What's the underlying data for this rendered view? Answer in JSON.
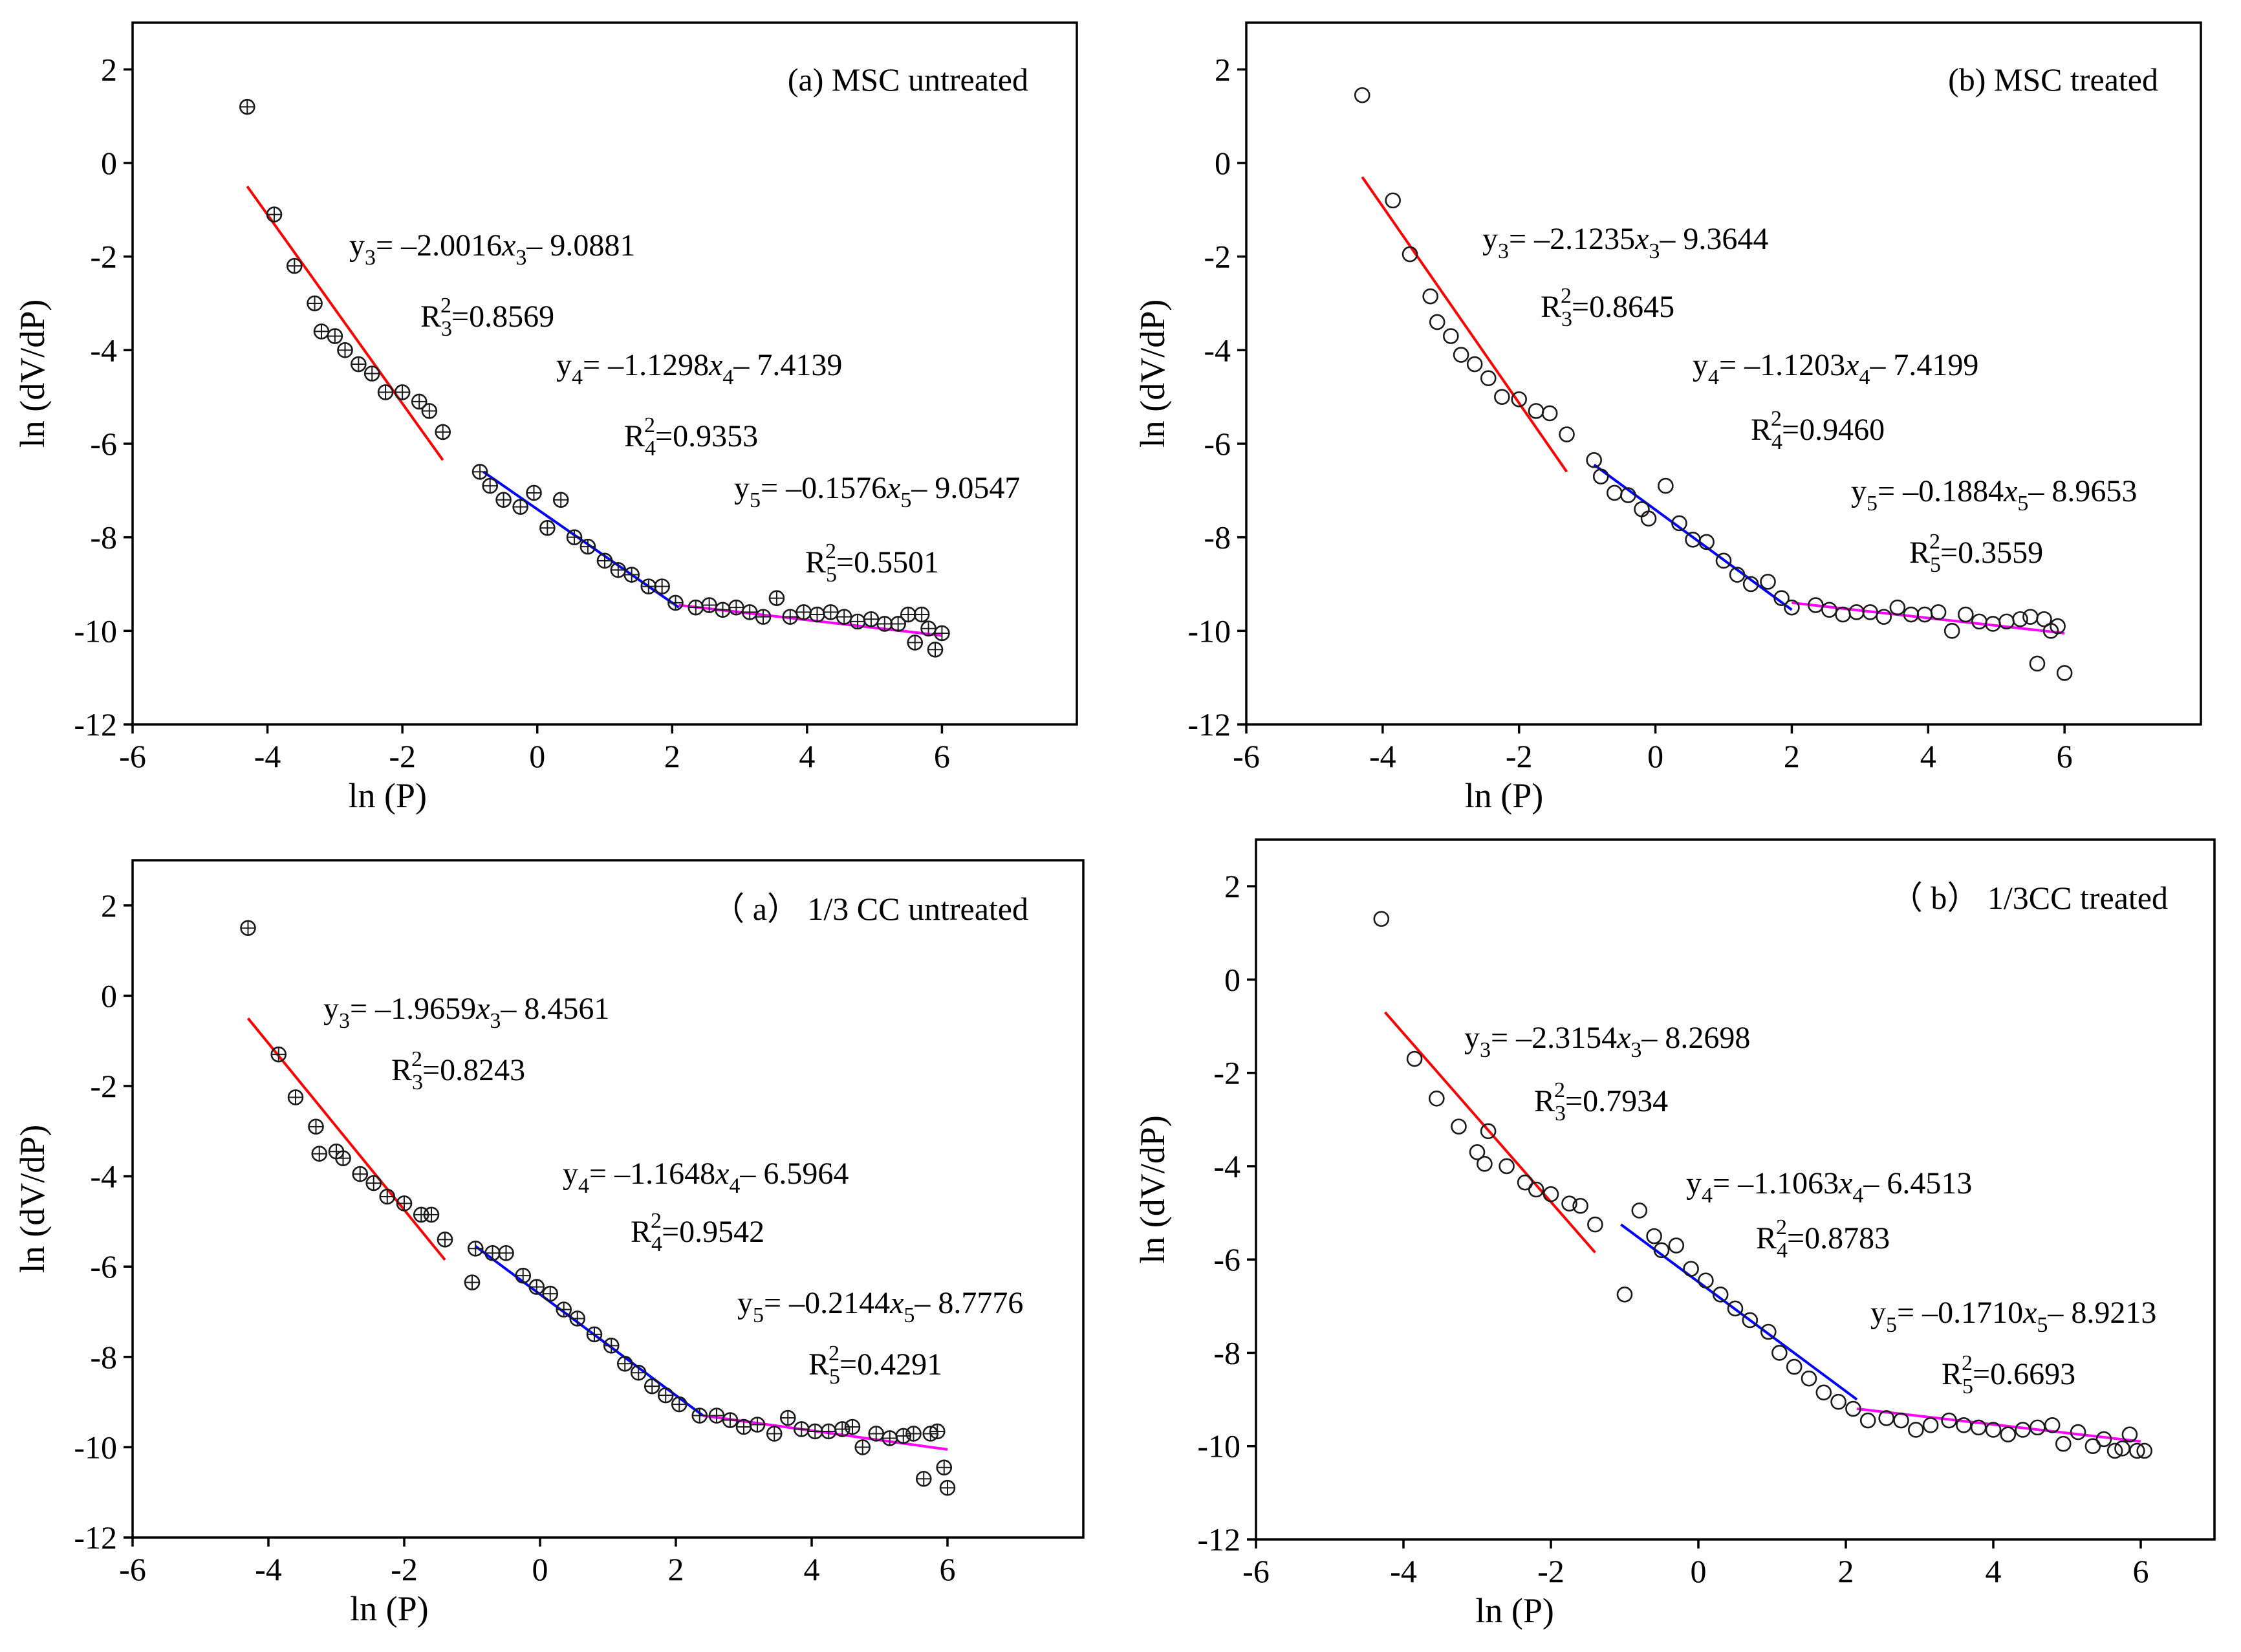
{
  "chart_data": [
    {
      "type": "scatter",
      "title": "(a) MSC untreated",
      "xlabel": "ln (P)",
      "ylabel": "ln (dV/dP)",
      "xlim": [
        -6,
        8
      ],
      "ylim": [
        -12,
        3
      ],
      "xticks": [
        "-6",
        "-4",
        "-2",
        "0",
        "2",
        "4",
        "6"
      ],
      "yticks": [
        "2",
        "0",
        "-2",
        "-4",
        "-6",
        "-8",
        "-10",
        "-12"
      ],
      "marker": "crossed-circle",
      "points": {
        "x": [
          -4.3,
          -3.9,
          -3.6,
          -3.3,
          -3.2,
          -3.0,
          -2.85,
          -2.65,
          -2.45,
          -2.25,
          -2.0,
          -1.75,
          -1.6,
          -1.4,
          -0.85,
          -0.7,
          -0.5,
          -0.25,
          -0.05,
          0.15,
          0.35,
          0.55,
          0.75,
          1.0,
          1.2,
          1.4,
          1.65,
          1.85,
          2.05,
          2.35,
          2.55,
          2.75,
          2.95,
          3.15,
          3.35,
          3.55,
          3.75,
          3.95,
          4.15,
          4.35,
          4.55,
          4.75,
          4.95,
          5.15,
          5.35,
          5.5,
          5.6,
          5.7,
          5.8,
          5.9,
          6.0
        ],
        "y": [
          1.2,
          -1.1,
          -2.2,
          -3.0,
          -3.6,
          -3.7,
          -4.0,
          -4.3,
          -4.5,
          -4.9,
          -4.9,
          -5.1,
          -5.3,
          -5.75,
          -6.6,
          -6.9,
          -7.2,
          -7.35,
          -7.05,
          -7.8,
          -7.2,
          -8.0,
          -8.2,
          -8.5,
          -8.7,
          -8.8,
          -9.05,
          -9.05,
          -9.4,
          -9.5,
          -9.45,
          -9.55,
          -9.5,
          -9.6,
          -9.7,
          -9.3,
          -9.7,
          -9.6,
          -9.65,
          -9.6,
          -9.7,
          -9.8,
          -9.75,
          -9.85,
          -9.85,
          -9.65,
          -10.25,
          -9.65,
          -9.95,
          -10.4,
          -10.05
        ]
      },
      "fits": [
        {
          "name": "y3",
          "color": "#ff0000",
          "x_range": [
            -4.3,
            -1.4
          ],
          "y_range": [
            -0.5,
            -6.35
          ]
        },
        {
          "name": "y4",
          "color": "#0000ff",
          "x_range": [
            -0.8,
            2.1
          ],
          "y_range": [
            -6.6,
            -9.5
          ]
        },
        {
          "name": "y5",
          "color": "#ff00ff",
          "x_range": [
            2.1,
            6.0
          ],
          "y_range": [
            -9.45,
            -10.1
          ]
        }
      ],
      "annotations": {
        "eq3_a": "y",
        "eq3_sub": "3",
        "eq3_b": "= –2.0016",
        "eq3_x": "x",
        "eq3_xsub": "3",
        "eq3_c": "– 9.0881",
        "r3_a": "R",
        "r3_sub": "3",
        "r3_sup": "2",
        "r3_b": "=0.8569",
        "eq4_a": "y",
        "eq4_sub": "4",
        "eq4_b": "= –1.1298",
        "eq4_x": "x",
        "eq4_xsub": "4",
        "eq4_c": "– 7.4139",
        "r4_a": "R",
        "r4_sub": "4",
        "r4_sup": "2",
        "r4_b": "=0.9353",
        "eq5_a": "y",
        "eq5_sub": "5",
        "eq5_b": "= –0.1576",
        "eq5_x": "x",
        "eq5_xsub": "5",
        "eq5_c": "– 9.0547",
        "r5_a": "R",
        "r5_sub": "5",
        "r5_sup": "2",
        "r5_b": "=0.5501"
      }
    },
    {
      "type": "scatter",
      "title": "(b) MSC treated",
      "xlabel": "ln (P)",
      "ylabel": "ln (dV/dP)",
      "xlim": [
        -6,
        8
      ],
      "ylim": [
        -12,
        3
      ],
      "xticks": [
        "-6",
        "-4",
        "-2",
        "0",
        "2",
        "4",
        "6"
      ],
      "yticks": [
        "2",
        "0",
        "-2",
        "-4",
        "-6",
        "-8",
        "-10",
        "-12"
      ],
      "marker": "circle",
      "points": {
        "x": [
          -4.3,
          -3.85,
          -3.6,
          -3.3,
          -3.2,
          -3.0,
          -2.85,
          -2.65,
          -2.45,
          -2.25,
          -2.0,
          -1.75,
          -1.55,
          -1.3,
          -0.9,
          -0.8,
          -0.6,
          -0.4,
          -0.2,
          -0.1,
          0.15,
          0.35,
          0.55,
          0.75,
          1.0,
          1.2,
          1.4,
          1.65,
          1.85,
          2.0,
          2.35,
          2.55,
          2.75,
          2.95,
          3.15,
          3.35,
          3.55,
          3.75,
          3.95,
          4.15,
          4.35,
          4.55,
          4.75,
          4.95,
          5.15,
          5.35,
          5.5,
          5.6,
          5.7,
          5.8,
          5.9,
          6.0
        ],
        "y": [
          1.45,
          -0.8,
          -1.95,
          -2.85,
          -3.4,
          -3.7,
          -4.1,
          -4.3,
          -4.6,
          -5.0,
          -5.05,
          -5.3,
          -5.35,
          -5.8,
          -6.35,
          -6.7,
          -7.05,
          -7.1,
          -7.4,
          -7.6,
          -6.9,
          -7.7,
          -8.05,
          -8.1,
          -8.5,
          -8.8,
          -9.0,
          -8.95,
          -9.3,
          -9.5,
          -9.45,
          -9.55,
          -9.65,
          -9.6,
          -9.6,
          -9.7,
          -9.5,
          -9.65,
          -9.65,
          -9.6,
          -10.0,
          -9.65,
          -9.8,
          -9.85,
          -9.8,
          -9.75,
          -9.7,
          -10.7,
          -9.75,
          -10.0,
          -9.9,
          -10.9
        ]
      },
      "fits": [
        {
          "name": "y3",
          "color": "#ff0000",
          "x_range": [
            -4.3,
            -1.3
          ],
          "y_range": [
            -0.3,
            -6.6
          ]
        },
        {
          "name": "y4",
          "color": "#0000ff",
          "x_range": [
            -0.9,
            2.0
          ],
          "y_range": [
            -6.45,
            -9.55
          ]
        },
        {
          "name": "y5",
          "color": "#ff00ff",
          "x_range": [
            2.0,
            6.0
          ],
          "y_range": [
            -9.4,
            -10.05
          ]
        }
      ],
      "annotations": {
        "eq3_a": "y",
        "eq3_sub": "3",
        "eq3_b": "= –2.1235",
        "eq3_x": "x",
        "eq3_xsub": "3",
        "eq3_c": "– 9.3644",
        "r3_a": "R",
        "r3_sub": "3",
        "r3_sup": "2",
        "r3_b": "=0.8645",
        "eq4_a": "y",
        "eq4_sub": "4",
        "eq4_b": "= –1.1203",
        "eq4_x": "x",
        "eq4_xsub": "4",
        "eq4_c": "– 7.4199",
        "r4_a": "R",
        "r4_sub": "4",
        "r4_sup": "2",
        "r4_b": "=0.9460",
        "eq5_a": "y",
        "eq5_sub": "5",
        "eq5_b": "= –0.1884",
        "eq5_x": "x",
        "eq5_xsub": "5",
        "eq5_c": "– 8.9653",
        "r5_a": "R",
        "r5_sub": "5",
        "r5_sup": "2",
        "r5_b": "=0.3559"
      }
    },
    {
      "type": "scatter",
      "title": "（ a） 1/3 CC untreated",
      "xlabel": "ln (P)",
      "ylabel": "ln (dV/dP)",
      "xlim": [
        -6,
        8
      ],
      "ylim": [
        -12,
        3
      ],
      "xticks": [
        "-6",
        "-4",
        "-2",
        "0",
        "2",
        "4",
        "6"
      ],
      "yticks": [
        "2",
        "0",
        "-2",
        "-4",
        "-6",
        "-8",
        "-10",
        "-12"
      ],
      "marker": "crossed-circle",
      "points": {
        "x": [
          -4.3,
          -3.85,
          -3.6,
          -3.3,
          -3.25,
          -3.0,
          -2.9,
          -2.65,
          -2.45,
          -2.25,
          -2.0,
          -1.75,
          -1.6,
          -1.4,
          -1.0,
          -0.95,
          -0.7,
          -0.5,
          -0.25,
          -0.05,
          0.15,
          0.35,
          0.55,
          0.8,
          1.05,
          1.25,
          1.45,
          1.65,
          1.85,
          2.05,
          2.35,
          2.6,
          2.8,
          3.0,
          3.2,
          3.45,
          3.65,
          3.85,
          4.05,
          4.25,
          4.45,
          4.6,
          4.75,
          4.95,
          5.15,
          5.35,
          5.5,
          5.65,
          5.75,
          5.85,
          5.95,
          6.0
        ],
        "y": [
          1.5,
          -1.3,
          -2.25,
          -2.9,
          -3.5,
          -3.45,
          -3.6,
          -3.95,
          -4.15,
          -4.45,
          -4.6,
          -4.85,
          -4.85,
          -5.4,
          -6.35,
          -5.6,
          -5.7,
          -5.7,
          -6.2,
          -6.45,
          -6.6,
          -6.95,
          -7.15,
          -7.5,
          -7.75,
          -8.15,
          -8.35,
          -8.65,
          -8.85,
          -9.05,
          -9.3,
          -9.3,
          -9.4,
          -9.55,
          -9.5,
          -9.7,
          -9.35,
          -9.6,
          -9.65,
          -9.65,
          -9.6,
          -9.55,
          -10.0,
          -9.7,
          -9.8,
          -9.75,
          -9.7,
          -10.7,
          -9.7,
          -9.65,
          -10.45,
          -10.9
        ]
      },
      "fits": [
        {
          "name": "y3",
          "color": "#ff0000",
          "x_range": [
            -4.3,
            -1.4
          ],
          "y_range": [
            -0.5,
            -5.85
          ]
        },
        {
          "name": "y4",
          "color": "#0000ff",
          "x_range": [
            -0.95,
            2.4
          ],
          "y_range": [
            -5.55,
            -9.3
          ]
        },
        {
          "name": "y5",
          "color": "#ff00ff",
          "x_range": [
            2.4,
            6.0
          ],
          "y_range": [
            -9.3,
            -10.05
          ]
        }
      ],
      "annotations": {
        "eq3_a": "y",
        "eq3_sub": "3",
        "eq3_b": "= –1.9659",
        "eq3_x": "x",
        "eq3_xsub": "3",
        "eq3_c": "– 8.4561",
        "r3_a": "R",
        "r3_sub": "3",
        "r3_sup": "2",
        "r3_b": "=0.8243",
        "eq4_a": "y",
        "eq4_sub": "4",
        "eq4_b": "= –1.1648",
        "eq4_x": "x",
        "eq4_xsub": "4",
        "eq4_c": "– 6.5964",
        "r4_a": "R",
        "r4_sub": "4",
        "r4_sup": "2",
        "r4_b": "=0.9542",
        "eq5_a": "y",
        "eq5_sub": "5",
        "eq5_b": "= –0.2144",
        "eq5_x": "x",
        "eq5_xsub": "5",
        "eq5_c": "– 8.7776",
        "r5_a": "R",
        "r5_sub": "5",
        "r5_sup": "2",
        "r5_b": "=0.4291"
      }
    },
    {
      "type": "scatter",
      "title": "（ b） 1/3CC treated",
      "xlabel": "ln (P)",
      "ylabel": "ln (dV/dP)",
      "xlim": [
        -6,
        7
      ],
      "ylim": [
        -12,
        3
      ],
      "xticks": [
        "-6",
        "-4",
        "-2",
        "0",
        "2",
        "4",
        "6"
      ],
      "yticks": [
        "2",
        "0",
        "-2",
        "-4",
        "-6",
        "-8",
        "-10",
        "-12"
      ],
      "marker": "circle",
      "points": {
        "x": [
          -4.3,
          -3.85,
          -3.55,
          -3.25,
          -3.0,
          -2.9,
          -2.85,
          -2.6,
          -2.35,
          -2.2,
          -2.0,
          -1.75,
          -1.6,
          -1.4,
          -1.0,
          -0.8,
          -0.6,
          -0.5,
          -0.3,
          -0.1,
          0.1,
          0.3,
          0.5,
          0.7,
          0.95,
          1.1,
          1.3,
          1.5,
          1.7,
          1.9,
          2.1,
          2.3,
          2.55,
          2.75,
          2.95,
          3.15,
          3.4,
          3.6,
          3.8,
          4.0,
          4.2,
          4.4,
          4.6,
          4.8,
          4.95,
          5.15,
          5.35,
          5.5,
          5.65,
          5.75,
          5.85,
          5.95,
          6.05
        ],
        "y": [
          1.3,
          -1.7,
          -2.55,
          -3.15,
          -3.7,
          -3.95,
          -3.25,
          -4.0,
          -4.35,
          -4.5,
          -4.6,
          -4.8,
          -4.85,
          -5.25,
          -6.75,
          -4.95,
          -5.5,
          -5.8,
          -5.7,
          -6.2,
          -6.45,
          -6.75,
          -7.05,
          -7.3,
          -7.55,
          -8.0,
          -8.3,
          -8.55,
          -8.85,
          -9.05,
          -9.2,
          -9.45,
          -9.4,
          -9.45,
          -9.65,
          -9.55,
          -9.45,
          -9.55,
          -9.6,
          -9.65,
          -9.75,
          -9.65,
          -9.6,
          -9.55,
          -9.95,
          -9.7,
          -10.0,
          -9.85,
          -10.1,
          -10.05,
          -9.75,
          -10.1,
          -10.1
        ]
      },
      "fits": [
        {
          "name": "y3",
          "color": "#ff0000",
          "x_range": [
            -4.25,
            -1.4
          ],
          "y_range": [
            -0.7,
            -5.85
          ]
        },
        {
          "name": "y4",
          "color": "#0000ff",
          "x_range": [
            -1.05,
            2.15
          ],
          "y_range": [
            -5.25,
            -9.0
          ]
        },
        {
          "name": "y5",
          "color": "#ff00ff",
          "x_range": [
            2.15,
            6.0
          ],
          "y_range": [
            -9.2,
            -9.9
          ]
        }
      ],
      "annotations": {
        "eq3_a": "y",
        "eq3_sub": "3",
        "eq3_b": "= –2.3154",
        "eq3_x": "x",
        "eq3_xsub": "3",
        "eq3_c": "– 8.2698",
        "r3_a": "R",
        "r3_sub": "3",
        "r3_sup": "2",
        "r3_b": "=0.7934",
        "eq4_a": "y",
        "eq4_sub": "4",
        "eq4_b": "= –1.1063",
        "eq4_x": "x",
        "eq4_xsub": "4",
        "eq4_c": "– 6.4513",
        "r4_a": "R",
        "r4_sub": "4",
        "r4_sup": "2",
        "r4_b": "=0.8783",
        "eq5_a": "y",
        "eq5_sub": "5",
        "eq5_b": "= –0.1710",
        "eq5_x": "x",
        "eq5_xsub": "5",
        "eq5_c": "– 8.9213",
        "r5_a": "R",
        "r5_sub": "5",
        "r5_sup": "2",
        "r5_b": "=0.6693"
      }
    }
  ]
}
